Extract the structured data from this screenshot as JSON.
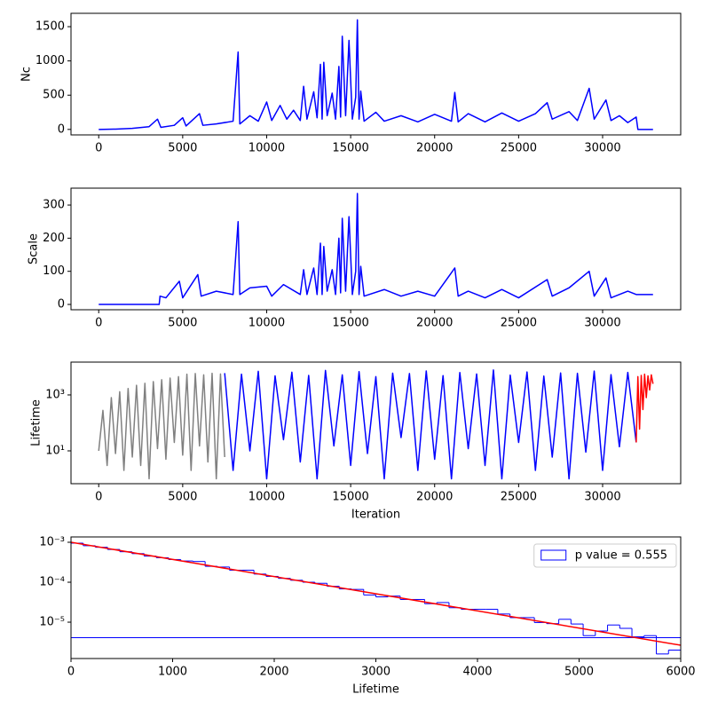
{
  "chart_data": [
    {
      "type": "line",
      "ylabel": "Nc",
      "color": "blue",
      "x": [
        0,
        1000,
        2000,
        3000,
        3500,
        3700,
        4500,
        5000,
        5200,
        6000,
        6200,
        7000,
        8000,
        8300,
        8400,
        9000,
        9500,
        10000,
        10300,
        10800,
        11200,
        11600,
        12000,
        12200,
        12400,
        12800,
        13000,
        13200,
        13300,
        13400,
        13600,
        13900,
        14100,
        14300,
        14400,
        14500,
        14700,
        14900,
        15100,
        15300,
        15400,
        15500,
        15600,
        15800,
        16500,
        17000,
        18000,
        19000,
        20000,
        21000,
        21200,
        21400,
        22000,
        23000,
        24000,
        25000,
        26000,
        26700,
        27000,
        28000,
        28500,
        29200,
        29500,
        30200,
        30500,
        31000,
        31500,
        32000,
        32100,
        33000
      ],
      "values": [
        0,
        5,
        15,
        40,
        150,
        30,
        60,
        170,
        50,
        230,
        60,
        80,
        120,
        1130,
        80,
        200,
        120,
        400,
        130,
        350,
        150,
        280,
        130,
        630,
        150,
        550,
        170,
        950,
        150,
        980,
        200,
        530,
        150,
        920,
        180,
        1360,
        200,
        1300,
        150,
        470,
        1600,
        150,
        560,
        120,
        250,
        120,
        200,
        110,
        220,
        120,
        540,
        110,
        230,
        110,
        240,
        120,
        230,
        390,
        150,
        260,
        130,
        600,
        150,
        430,
        130,
        200,
        100,
        180,
        0,
        0
      ],
      "xlim": [
        -1650,
        34650
      ],
      "xticks": [
        0,
        5000,
        10000,
        15000,
        20000,
        25000,
        30000
      ],
      "ylim": [
        -80,
        1695
      ],
      "yticks": [
        0,
        500,
        1000,
        1500
      ]
    },
    {
      "type": "line",
      "ylabel": "Scale",
      "color": "blue",
      "x": [
        0,
        3600,
        3650,
        4000,
        4800,
        5000,
        5900,
        6100,
        7000,
        8000,
        8300,
        8400,
        9000,
        10000,
        10300,
        11000,
        12000,
        12200,
        12400,
        12800,
        13000,
        13200,
        13300,
        13400,
        13600,
        13900,
        14100,
        14300,
        14400,
        14500,
        14700,
        14900,
        15100,
        15300,
        15400,
        15500,
        15600,
        15800,
        17000,
        18000,
        19000,
        20000,
        21200,
        21400,
        22000,
        23000,
        24000,
        25000,
        26700,
        27000,
        28000,
        29200,
        29500,
        30200,
        30500,
        31500,
        32000,
        33000
      ],
      "values": [
        0,
        0,
        25,
        20,
        70,
        20,
        90,
        25,
        40,
        30,
        250,
        30,
        50,
        55,
        25,
        60,
        30,
        105,
        30,
        110,
        30,
        185,
        30,
        175,
        40,
        105,
        30,
        200,
        35,
        260,
        40,
        265,
        30,
        100,
        335,
        30,
        115,
        25,
        45,
        25,
        40,
        25,
        110,
        25,
        40,
        20,
        45,
        20,
        75,
        25,
        50,
        100,
        25,
        80,
        20,
        40,
        30,
        30
      ],
      "xlim": [
        -1650,
        34650
      ],
      "xticks": [
        0,
        5000,
        10000,
        15000,
        20000,
        25000,
        30000
      ],
      "ylim": [
        -16,
        351
      ],
      "yticks": [
        0,
        100,
        200,
        300
      ]
    },
    {
      "type": "line",
      "ylabel": "Lifetime",
      "xlabel": "Iteration",
      "ylog": true,
      "series": [
        {
          "color": "gray",
          "x": [
            0,
            250,
            500,
            750,
            1000,
            1250,
            1500,
            1750,
            2000,
            2250,
            2500,
            2750,
            3000,
            3250,
            3500,
            3750,
            4000,
            4250,
            4500,
            4750,
            5000,
            5250,
            5500,
            5750,
            6000,
            6250,
            6500,
            6750,
            7000,
            7250,
            7500
          ],
          "values": [
            10,
            280,
            3,
            800,
            8,
            1300,
            2,
            1700,
            6,
            2200,
            3,
            2600,
            1,
            3000,
            12,
            3500,
            5,
            4000,
            20,
            4500,
            7,
            5500,
            2,
            5800,
            15,
            5200,
            4,
            5900,
            1,
            5600,
            6
          ]
        },
        {
          "color": "blue",
          "x": [
            7500,
            8000,
            8500,
            9000,
            9500,
            10000,
            10500,
            11000,
            11500,
            12000,
            12500,
            13000,
            13500,
            14000,
            14500,
            15000,
            15500,
            16000,
            16500,
            17000,
            17500,
            18000,
            18500,
            19000,
            19500,
            20000,
            20500,
            21000,
            21500,
            22000,
            22500,
            23000,
            23500,
            24000,
            24500,
            25000,
            25500,
            26000,
            26500,
            27000,
            27500,
            28000,
            28500,
            29000,
            29500,
            30000,
            30500,
            31000,
            31500,
            32000
          ],
          "values": [
            6000,
            2,
            5500,
            10,
            7000,
            1,
            4800,
            25,
            6500,
            4,
            5000,
            1,
            7500,
            15,
            5200,
            3,
            6800,
            8,
            4500,
            1,
            6000,
            30,
            5800,
            2,
            7200,
            5,
            4900,
            1,
            6300,
            12,
            5600,
            3,
            7800,
            1,
            5100,
            20,
            6600,
            2,
            4700,
            6,
            6100,
            1,
            5900,
            9,
            7100,
            2,
            5300,
            14,
            6400,
            20
          ]
        },
        {
          "color": "red",
          "x": [
            32000,
            32100,
            32200,
            32300,
            32400,
            32500,
            32600,
            32700,
            32800,
            32900,
            33000
          ],
          "values": [
            20,
            4500,
            60,
            5000,
            300,
            5500,
            800,
            4800,
            1500,
            5200,
            2500
          ]
        }
      ],
      "xlim": [
        -1650,
        34650
      ],
      "xticks": [
        0,
        5000,
        10000,
        15000,
        20000,
        25000,
        30000
      ],
      "ylim": [
        0.67,
        14900
      ],
      "yticks": [
        {
          "value": 10,
          "label": "10¹"
        },
        {
          "value": 1000,
          "label": "10³"
        }
      ]
    },
    {
      "type": "histogram",
      "xlabel": "Lifetime",
      "ylog": true,
      "name": "p value = 0.555",
      "color": "blue",
      "bins": [
        0,
        120,
        240,
        360,
        480,
        600,
        720,
        840,
        960,
        1080,
        1200,
        1320,
        1440,
        1560,
        1680,
        1800,
        1920,
        2040,
        2160,
        2280,
        2400,
        2520,
        2640,
        2760,
        2880,
        3000,
        3120,
        3240,
        3360,
        3480,
        3600,
        3720,
        3840,
        3960,
        4080,
        4200,
        4320,
        4440,
        4560,
        4680,
        4800,
        4920,
        5040,
        5160,
        5280,
        5400,
        5520,
        5640,
        5760,
        5880,
        6000
      ],
      "values": [
        0.00095,
        0.00082,
        0.00075,
        0.00066,
        0.00058,
        0.00052,
        0.00045,
        0.00041,
        0.00037,
        0.00034,
        0.00033,
        0.00025,
        0.00024,
        0.0002,
        0.0002,
        0.00016,
        0.00014,
        0.000125,
        0.000112,
        0.0001,
        9.4e-05,
        7.9e-05,
        6.8e-05,
        6.6e-05,
        4.8e-05,
        4.3e-05,
        4.5e-05,
        3.7e-05,
        3.7e-05,
        2.9e-05,
        3.1e-05,
        2.3e-05,
        2.1e-05,
        2.1e-05,
        2.1e-05,
        1.6e-05,
        1.3e-05,
        1.3e-05,
        9.8e-06,
        9.2e-06,
        1.18e-05,
        9e-06,
        4.6e-06,
        6e-06,
        8.5e-06,
        7e-06,
        4.3e-06,
        4.6e-06,
        1.6e-06,
        2e-06,
        4.1e-06
      ],
      "fit": {
        "color": "red",
        "x": [
          0,
          6000
        ],
        "values": [
          0.001,
          2.65e-06
        ]
      },
      "legend": "upper right",
      "xlim": [
        0,
        6000
      ],
      "xticks": [
        0,
        1000,
        2000,
        3000,
        4000,
        5000,
        6000
      ],
      "ylim": [
        1.23e-06,
        0.00136
      ],
      "yticks": [
        {
          "value": 0.001,
          "label": "10⁻³"
        },
        {
          "value": 0.0001,
          "label": "10⁻⁴"
        },
        {
          "value": 1e-05,
          "label": "10⁻⁵"
        }
      ]
    }
  ]
}
